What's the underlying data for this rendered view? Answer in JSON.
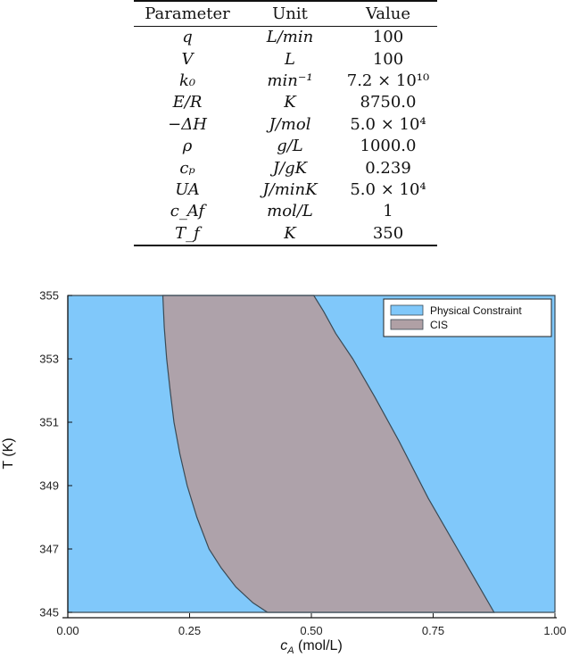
{
  "table": {
    "headers": [
      "Parameter",
      "Unit",
      "Value"
    ],
    "rows": [
      {
        "param": "q",
        "unit": "L/min",
        "value": "100"
      },
      {
        "param": "V",
        "unit": "L",
        "value": "100"
      },
      {
        "param": "k₀",
        "unit": "min⁻¹",
        "value": "7.2 × 10¹⁰"
      },
      {
        "param": "E/R",
        "unit": "K",
        "value": "8750.0"
      },
      {
        "param": "−ΔH",
        "unit": "J/mol",
        "value": "5.0 × 10⁴"
      },
      {
        "param": "ρ",
        "unit": "g/L",
        "value": "1000.0"
      },
      {
        "param": "cₚ",
        "unit": "J/gK",
        "value": "0.239"
      },
      {
        "param": "UA",
        "unit": "J/minK",
        "value": "5.0 × 10⁴"
      },
      {
        "param": "c_Af",
        "unit": "mol/L",
        "value": "1"
      },
      {
        "param": "T_f",
        "unit": "K",
        "value": "350"
      }
    ]
  },
  "chart_data": {
    "type": "area",
    "xlabel": "c_A (mol/L)",
    "ylabel": "T (K)",
    "xlim": [
      0,
      1
    ],
    "ylim": [
      345,
      355
    ],
    "xticks": [
      0.0,
      0.25,
      0.5,
      0.75,
      1.0
    ],
    "xtick_labels": [
      "0.00",
      "0.25",
      "0.50",
      "0.75",
      "1.00"
    ],
    "yticks": [
      345,
      347,
      349,
      351,
      353,
      355
    ],
    "ytick_labels": [
      "345",
      "347",
      "349",
      "351",
      "353",
      "355"
    ],
    "grid": true,
    "legend_position": "top-right",
    "series": [
      {
        "name": "Physical Constraint",
        "color": "#80c8fa",
        "polygon": [
          [
            0.0,
            345
          ],
          [
            1.0,
            345
          ],
          [
            1.0,
            355
          ],
          [
            0.0,
            355
          ]
        ]
      },
      {
        "name": "CIS",
        "color": "#b0a0a5",
        "polygon": [
          [
            0.195,
            355
          ],
          [
            0.505,
            355
          ],
          [
            0.525,
            354.5
          ],
          [
            0.55,
            353.8
          ],
          [
            0.585,
            353.0
          ],
          [
            0.63,
            351.8
          ],
          [
            0.68,
            350.4
          ],
          [
            0.74,
            348.6
          ],
          [
            0.8,
            347.0
          ],
          [
            0.845,
            345.8
          ],
          [
            0.875,
            345
          ],
          [
            0.41,
            345
          ],
          [
            0.38,
            345.3
          ],
          [
            0.345,
            345.8
          ],
          [
            0.315,
            346.4
          ],
          [
            0.29,
            347.0
          ],
          [
            0.265,
            348.0
          ],
          [
            0.245,
            349.0
          ],
          [
            0.23,
            350.0
          ],
          [
            0.218,
            351.0
          ],
          [
            0.21,
            352.0
          ],
          [
            0.203,
            353.0
          ],
          [
            0.198,
            354.0
          ]
        ]
      }
    ]
  }
}
